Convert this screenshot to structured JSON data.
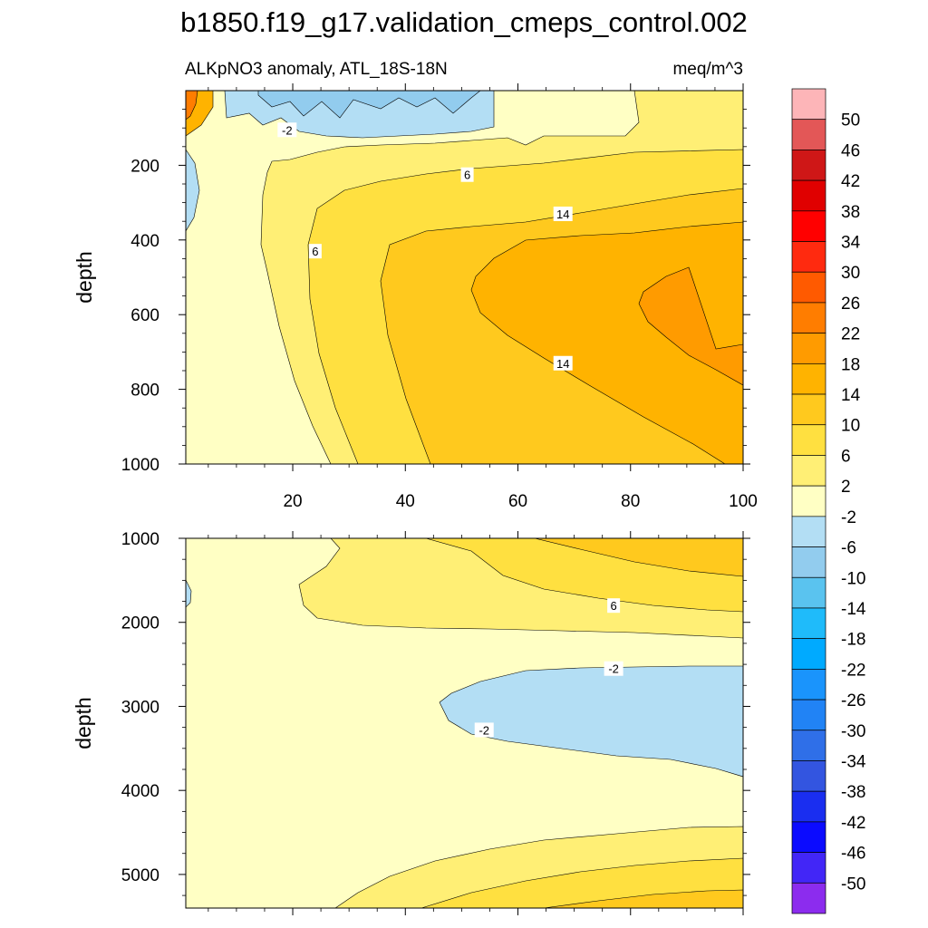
{
  "title": "b1850.f19_g17.validation_cmeps_control.002",
  "subtitle_left": "ALKpNO3 anomaly, ATL_18S-18N",
  "subtitle_right": "meq/m^3",
  "chart_data": [
    {
      "type": "contour",
      "panel": "upper",
      "xlabel": "",
      "ylabel": "depth",
      "xlim": [
        1,
        100
      ],
      "ylim": [
        0,
        1000
      ],
      "y_reversed": true,
      "xticks": [
        20,
        40,
        60,
        80,
        100
      ],
      "yticks": [
        200,
        400,
        600,
        800,
        1000
      ],
      "contour_labels": [
        {
          "text": "-2",
          "x": 19,
          "depth": 105
        },
        {
          "text": "6",
          "x": 51,
          "depth": 225
        },
        {
          "text": "6",
          "x": 24,
          "depth": 430
        },
        {
          "text": "14",
          "x": 68,
          "depth": 330
        },
        {
          "text": "14",
          "x": 68,
          "depth": 730
        }
      ],
      "note": "Anomaly grows with distance along x; maximum 18-22 near x=90-100, depth 400-800; negative (-2 to -6) band in top ~100 m"
    },
    {
      "type": "contour",
      "panel": "lower",
      "xlabel": "",
      "ylabel": "depth",
      "xlim": [
        1,
        100
      ],
      "ylim": [
        1000,
        5400
      ],
      "y_reversed": true,
      "xticks": [
        20,
        40,
        60,
        80,
        100
      ],
      "yticks": [
        1000,
        2000,
        3000,
        4000,
        5000
      ],
      "contour_labels": [
        {
          "text": "6",
          "x": 77,
          "depth": 1800
        },
        {
          "text": "-2",
          "x": 77,
          "depth": 2550
        },
        {
          "text": "-2",
          "x": 54,
          "depth": 3280
        }
      ],
      "note": "Mostly -2 to 2; positive (2-10) near 1000-2000 m on right; negative (-2 to -6) lens from x=45-100 at 2500-3800 m; positive near bottom on right"
    }
  ],
  "colorbar": {
    "labels": [
      "50",
      "46",
      "42",
      "38",
      "34",
      "30",
      "26",
      "22",
      "18",
      "14",
      "10",
      "6",
      "2",
      "-2",
      "-6",
      "-10",
      "-14",
      "-18",
      "-22",
      "-26",
      "-30",
      "-34",
      "-38",
      "-42",
      "-46",
      "-50"
    ],
    "colors": [
      "#fdb5b8",
      "#e35757",
      "#cf1717",
      "#e00000",
      "#ff0000",
      "#ff2a0f",
      "#ff5a00",
      "#ff7d00",
      "#ff9b00",
      "#ffb300",
      "#ffc91e",
      "#ffe040",
      "#ffef75",
      "#ffffc4",
      "#b3def4",
      "#92ccee",
      "#5ac3ef",
      "#1fbbfa",
      "#00aaff",
      "#1a94fc",
      "#2183f5",
      "#2f6fe8",
      "#3355e0",
      "#1a2ef0",
      "#0b0bff",
      "#4226f7",
      "#8c2cee"
    ]
  }
}
